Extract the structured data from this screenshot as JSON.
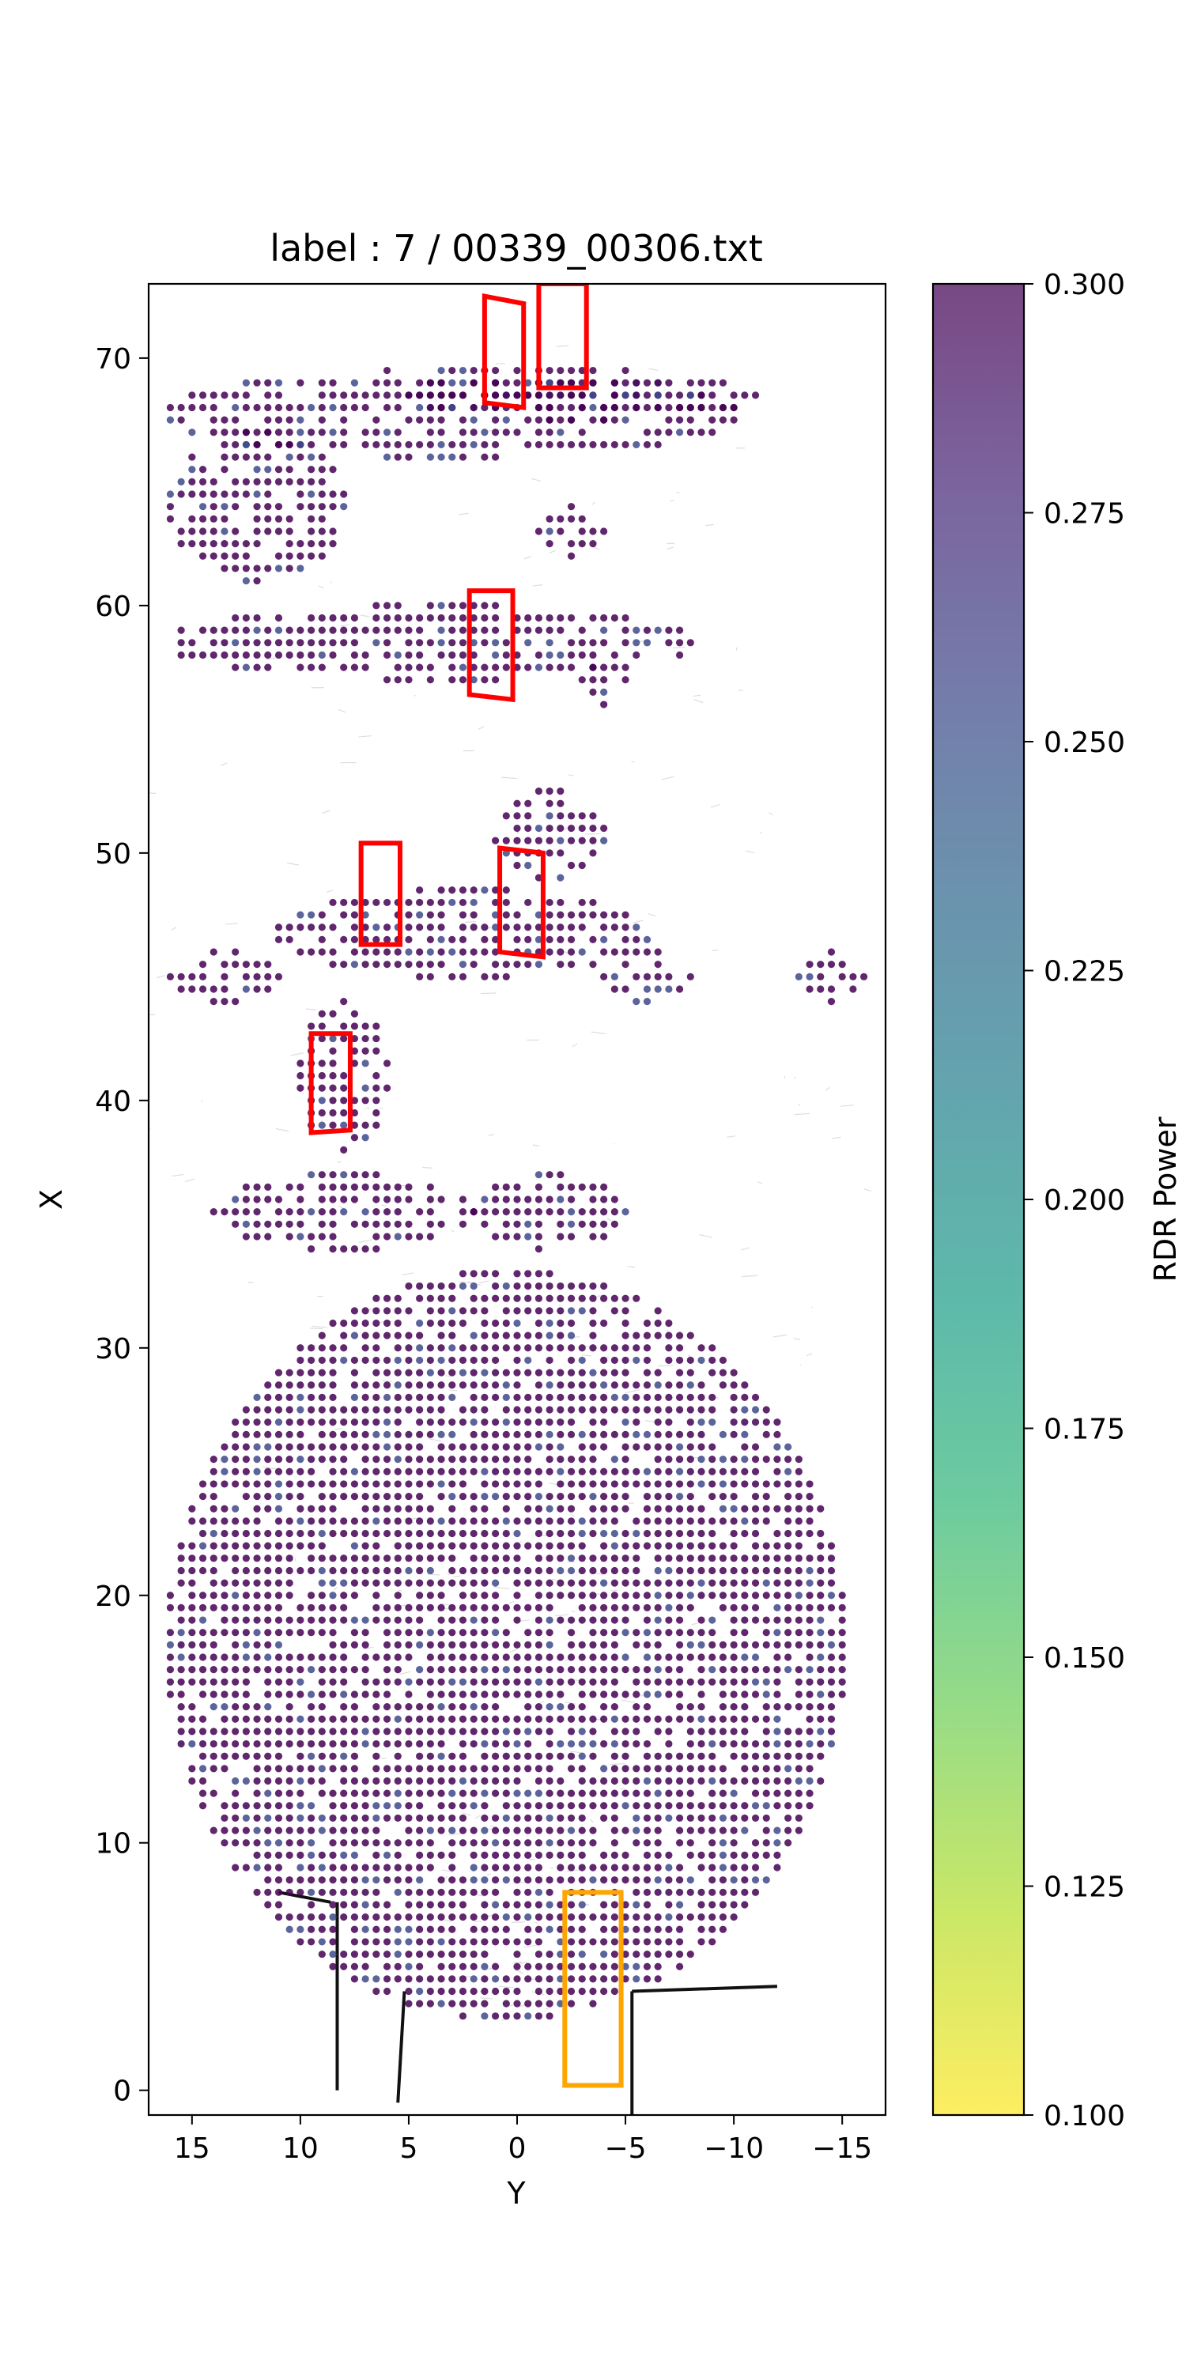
{
  "chart_data": {
    "type": "scatter",
    "title": "label : 7 / 00339_00306.txt",
    "xlabel": "Y",
    "ylabel": "X",
    "xlim": [
      17,
      -17
    ],
    "ylim": [
      -1,
      73
    ],
    "x_ticks": [
      15,
      10,
      5,
      0,
      -5,
      -10,
      -15
    ],
    "y_ticks": [
      0,
      10,
      20,
      30,
      40,
      50,
      60,
      70
    ],
    "x_tick_labels": [
      "15",
      "10",
      "5",
      "0",
      "−5",
      "−10",
      "−15"
    ],
    "y_tick_labels": [
      "0",
      "10",
      "20",
      "30",
      "40",
      "50",
      "60",
      "70"
    ],
    "colorbar": {
      "label": "RDR Power",
      "min": 0.1,
      "max": 0.3,
      "ticks": [
        0.1,
        0.125,
        0.15,
        0.175,
        0.2,
        0.225,
        0.25,
        0.275,
        0.3
      ],
      "tick_labels": [
        "0.100",
        "0.125",
        "0.150",
        "0.175",
        "0.200",
        "0.225",
        "0.250",
        "0.275",
        "0.300"
      ],
      "colormap": "viridis_r",
      "colors": [
        "#fde725",
        "#b5de2b",
        "#6ece58",
        "#35b779",
        "#1f9e89",
        "#26828e",
        "#31688e",
        "#3e4989",
        "#482878",
        "#440154"
      ]
    },
    "point_grid_spacing": 0.5,
    "point_color_dominant": "#440154",
    "point_color_secondary": "#3e4989",
    "radar_clusters": [
      {
        "y": [
          -10,
          16
        ],
        "x": [
          66,
          69.5
        ]
      },
      {
        "y": [
          -11,
          5
        ],
        "x": [
          67.5,
          69.5
        ]
      },
      {
        "y": [
          8,
          16
        ],
        "x": [
          61,
          67
        ]
      },
      {
        "y": [
          -8,
          16
        ],
        "x": [
          57,
          60
        ]
      },
      {
        "y": [
          -5,
          -3
        ],
        "x": [
          56,
          58
        ]
      },
      {
        "y": [
          -1,
          -4
        ],
        "x": [
          62,
          64
        ]
      },
      {
        "y": [
          -6,
          11
        ],
        "x": [
          45,
          48.5
        ]
      },
      {
        "y": [
          -4,
          1
        ],
        "x": [
          49,
          52.5
        ]
      },
      {
        "y": [
          -4,
          -8
        ],
        "x": [
          44,
          46
        ]
      },
      {
        "y": [
          -13,
          -16
        ],
        "x": [
          44,
          46
        ]
      },
      {
        "y": [
          16,
          11
        ],
        "x": [
          44,
          46
        ]
      },
      {
        "y": [
          6,
          10
        ],
        "x": [
          38,
          44
        ]
      },
      {
        "y": [
          2,
          14
        ],
        "x": [
          34,
          37
        ]
      },
      {
        "y": [
          -5,
          2
        ],
        "x": [
          34,
          37
        ]
      },
      {
        "y": [
          -15,
          16
        ],
        "x": [
          3,
          33
        ]
      }
    ],
    "boxes": [
      {
        "label": "red-box",
        "color": "#ff0000",
        "corners": [
          [
            1.5,
            68.2
          ],
          [
            -0.3,
            68.0
          ],
          [
            -0.3,
            72.2
          ],
          [
            1.5,
            72.5
          ]
        ]
      },
      {
        "label": "red-box",
        "color": "#ff0000",
        "corners": [
          [
            -1.0,
            68.8
          ],
          [
            -3.2,
            68.8
          ],
          [
            -3.2,
            73.0
          ],
          [
            -1.0,
            73.0
          ]
        ]
      },
      {
        "label": "red-box",
        "color": "#ff0000",
        "corners": [
          [
            2.2,
            56.4
          ],
          [
            0.2,
            56.2
          ],
          [
            0.2,
            60.6
          ],
          [
            2.2,
            60.6
          ]
        ]
      },
      {
        "label": "red-box",
        "color": "#ff0000",
        "corners": [
          [
            7.2,
            46.3
          ],
          [
            5.4,
            46.3
          ],
          [
            5.4,
            50.4
          ],
          [
            7.2,
            50.4
          ]
        ]
      },
      {
        "label": "red-box",
        "color": "#ff0000",
        "corners": [
          [
            0.8,
            46.0
          ],
          [
            -1.2,
            45.8
          ],
          [
            -1.2,
            50.0
          ],
          [
            0.8,
            50.2
          ]
        ]
      },
      {
        "label": "red-box",
        "color": "#ff0000",
        "corners": [
          [
            9.5,
            38.7
          ],
          [
            7.7,
            38.8
          ],
          [
            7.7,
            42.7
          ],
          [
            9.5,
            42.7
          ]
        ]
      },
      {
        "label": "orange-box",
        "color": "#ffa500",
        "corners": [
          [
            -2.2,
            0.2
          ],
          [
            -4.8,
            0.2
          ],
          [
            -4.8,
            8.0
          ],
          [
            -2.2,
            8.0
          ]
        ]
      }
    ]
  }
}
